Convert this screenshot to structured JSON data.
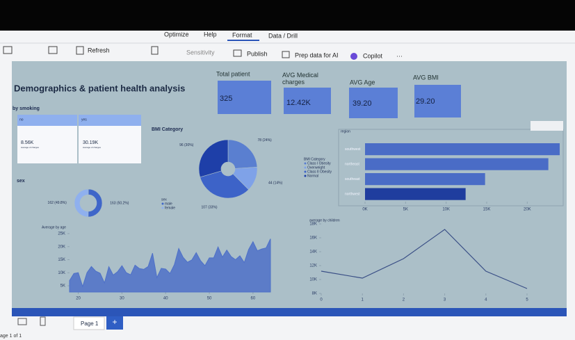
{
  "ribbon": {
    "tabs": [
      "Optimize",
      "Help",
      "Format",
      "Data / Drill"
    ],
    "buttons": [
      "Refresh",
      "Sensitivity",
      "Publish",
      "Prep data for AI",
      "Copilot",
      "···"
    ]
  },
  "report": {
    "title": "Demographics & patient health analysis",
    "cards": [
      {
        "label": "Total patient",
        "value": "325"
      },
      {
        "label": "AVG Medical charges",
        "value": "12.42K"
      },
      {
        "label": "AVG Age",
        "value": "39.20"
      },
      {
        "label": "AVG BMI",
        "value": "29.20"
      }
    ],
    "smoking": {
      "title": "by smoking",
      "items": [
        {
          "label": "no",
          "value": "8.56K",
          "caption": "Average of charges"
        },
        {
          "label": "yes",
          "value": "30.19K",
          "caption": "Average of charges"
        }
      ]
    }
  },
  "chart_data": [
    {
      "type": "pie",
      "title": "BMI Category",
      "legend_title": "BMI Category",
      "categories": [
        "Class I Obesity",
        "Overweight",
        "Class II Obesity",
        "Normal"
      ],
      "values": [
        78,
        44,
        107,
        96
      ],
      "value_labels": [
        "78 (24%)",
        "44 (14%)",
        "107 (33%)",
        "96 (30%)"
      ],
      "colors": [
        "#5a7fd0",
        "#7fa2e8",
        "#3d63c8",
        "#1e3fa8"
      ]
    },
    {
      "type": "pie",
      "title": "sex",
      "legend_title": "sex",
      "categories": [
        "male",
        "female"
      ],
      "values": [
        163,
        162
      ],
      "value_labels": [
        "163 (50.2%)",
        "162 (49.8%)"
      ],
      "colors": [
        "#3f66c9",
        "#8fb0ee"
      ]
    },
    {
      "type": "hbar",
      "title": "region",
      "categories": [
        "southwest",
        "northeast",
        "southeast",
        "northwest"
      ],
      "values": [
        24000,
        22600,
        14800,
        12400
      ],
      "color": "#4a6cc6",
      "highlight_color": "#1f3d9e",
      "xlim": [
        0,
        24000
      ],
      "xticks": [
        {
          "value": 0,
          "label": "0K"
        },
        {
          "value": 5000,
          "label": "5K"
        },
        {
          "value": 10000,
          "label": "10K"
        },
        {
          "value": 15000,
          "label": "15K"
        },
        {
          "value": 20000,
          "label": "20K"
        }
      ]
    },
    {
      "type": "area",
      "title": "Average by age",
      "color": "#4e70c8",
      "x": [
        18,
        19,
        20,
        21,
        22,
        23,
        24,
        25,
        26,
        27,
        28,
        29,
        30,
        31,
        32,
        33,
        34,
        35,
        36,
        37,
        38,
        39,
        40,
        41,
        42,
        43,
        44,
        45,
        46,
        47,
        48,
        49,
        50,
        51,
        52,
        53,
        54,
        55,
        56,
        57,
        58,
        59,
        60,
        61,
        62,
        63,
        64
      ],
      "values": [
        7000,
        9700,
        10000,
        4700,
        10000,
        12400,
        10600,
        9800,
        6100,
        12300,
        9100,
        10400,
        12700,
        10000,
        9200,
        12900,
        11600,
        11300,
        12400,
        17500,
        8100,
        11700,
        11400,
        9700,
        13100,
        19300,
        15900,
        14000,
        14900,
        17700,
        14600,
        12700,
        15700,
        15700,
        19900,
        16000,
        18700,
        16200,
        15000,
        16500,
        13900,
        18900,
        21900,
        18400,
        19100,
        19500,
        23000
      ],
      "xlim": [
        18,
        64
      ],
      "ylim": [
        2600,
        25000
      ],
      "xticks": [
        20,
        30,
        40,
        50,
        60
      ],
      "yticks": [
        {
          "value": 5000,
          "label": "5K"
        },
        {
          "value": 10000,
          "label": "10K"
        },
        {
          "value": 15000,
          "label": "15K"
        },
        {
          "value": 20000,
          "label": "20K"
        },
        {
          "value": 25000,
          "label": "25K"
        }
      ]
    },
    {
      "type": "line",
      "title": "average by children",
      "color": "#3a4f86",
      "x": [
        0,
        1,
        2,
        3,
        4,
        5
      ],
      "values": [
        11200,
        10200,
        13000,
        17200,
        11200,
        8700
      ],
      "xlim": [
        0,
        5
      ],
      "ylim": [
        8000,
        18000
      ],
      "xticks": [
        0,
        1,
        2,
        3,
        4,
        5
      ],
      "yticks": [
        {
          "value": 8000,
          "label": "8K"
        },
        {
          "value": 10000,
          "label": "10K"
        },
        {
          "value": 12000,
          "label": "12K"
        },
        {
          "value": 14000,
          "label": "14K"
        },
        {
          "value": 16000,
          "label": "16K"
        },
        {
          "value": 18000,
          "label": "18K"
        }
      ]
    }
  ],
  "footer": {
    "page_tab": "Page 1",
    "add": "+",
    "status": "age 1 of 1"
  }
}
